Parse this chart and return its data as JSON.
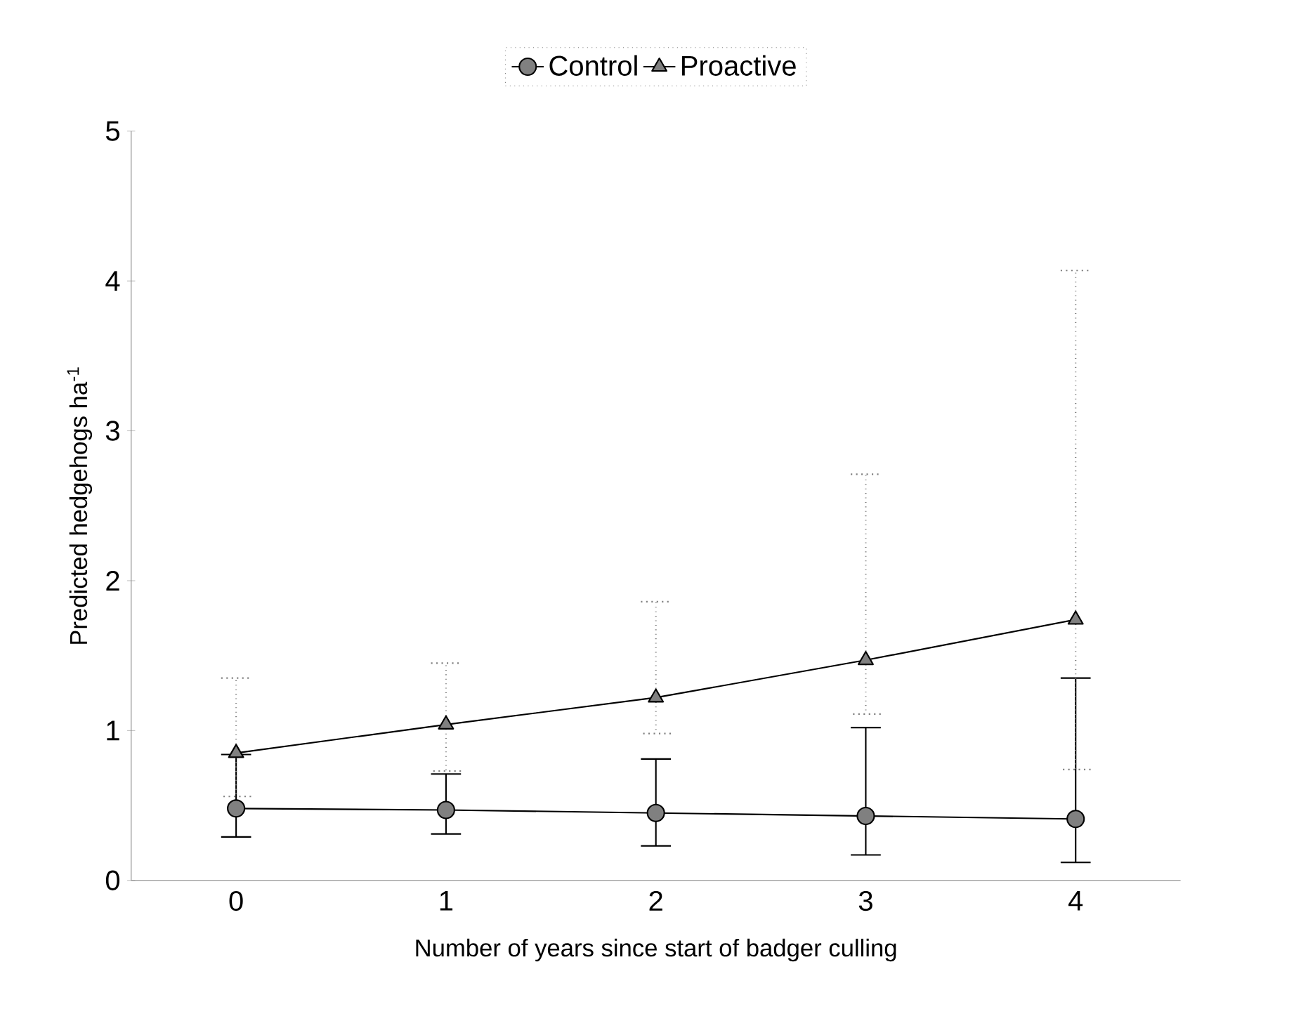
{
  "chart_data": {
    "type": "line",
    "xlabel": "Number of years since start of badger culling",
    "ylabel": "Predicted hedgehogs ha$^{-1}$",
    "categories": [
      "0",
      "1",
      "2",
      "3",
      "4"
    ],
    "ylim": [
      0,
      5
    ],
    "yticks": [
      0,
      1,
      2,
      3,
      4,
      5
    ],
    "grid": false,
    "legend": "top",
    "line_style": "solid",
    "series": [
      {
        "name": "Control",
        "color": "#000000",
        "marker": "circle",
        "values": [
          0.48,
          0.47,
          0.45,
          0.43,
          0.41
        ],
        "errors": [
          [
            0.29,
            0.84
          ],
          [
            0.31,
            0.71
          ],
          [
            0.23,
            0.81
          ],
          [
            0.17,
            1.02
          ],
          [
            0.12,
            1.35
          ]
        ]
      },
      {
        "name": "Proactive",
        "color": "#000000",
        "marker": "triangle",
        "values": [
          0.85,
          1.04,
          1.22,
          1.47,
          1.74
        ],
        "errors": [
          [
            0.56,
            1.35
          ],
          [
            0.73,
            1.45
          ],
          [
            0.98,
            1.86
          ],
          [
            1.11,
            2.71
          ],
          [
            0.74,
            4.07
          ]
        ]
      }
    ]
  }
}
